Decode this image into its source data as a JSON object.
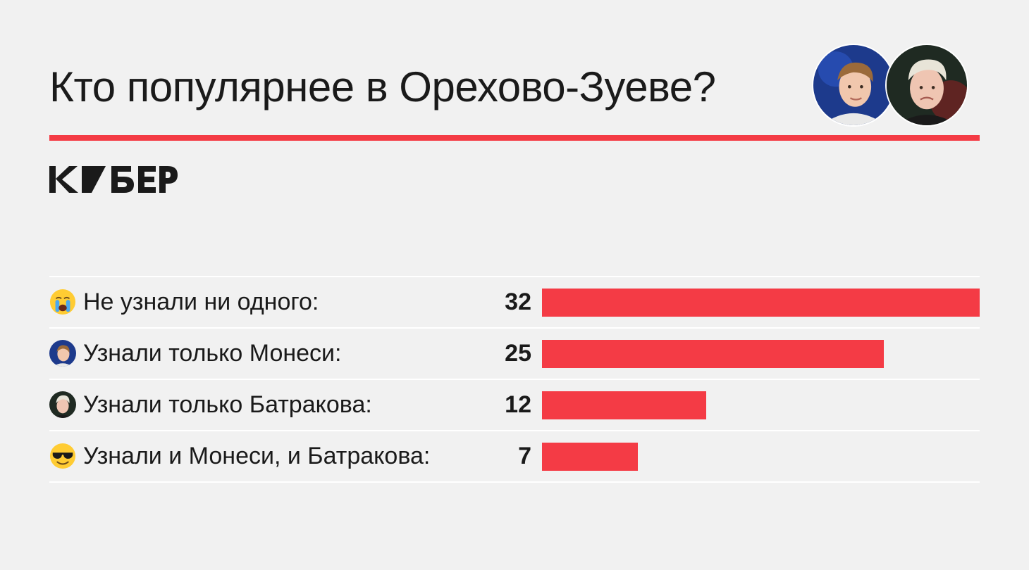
{
  "header": {
    "title": "Кто популярнее в Орехово-Зуеве?",
    "avatars": [
      {
        "icon": "player-monesi-avatar-icon"
      },
      {
        "icon": "player-batrakov-avatar-icon"
      }
    ]
  },
  "brand": {
    "logo_text": "КИБЕР",
    "accent_color": "#f43b45"
  },
  "chart_data": {
    "type": "bar",
    "orientation": "horizontal",
    "categories": [
      "Не узнали ни одного:",
      "Узнали только Монеси:",
      "Узнали только Батракова:",
      "Узнали и Монеси, и Батракова:"
    ],
    "values": [
      32,
      25,
      12,
      7
    ],
    "value_labels": [
      "32",
      "25",
      "12",
      "7"
    ],
    "category_icons": [
      "crying-face-icon",
      "monesi-face-icon",
      "batrakov-face-icon",
      "sunglasses-face-icon"
    ],
    "bar_color": "#f43b45",
    "xlim": [
      0,
      32
    ],
    "grid": false,
    "legend": "none"
  }
}
